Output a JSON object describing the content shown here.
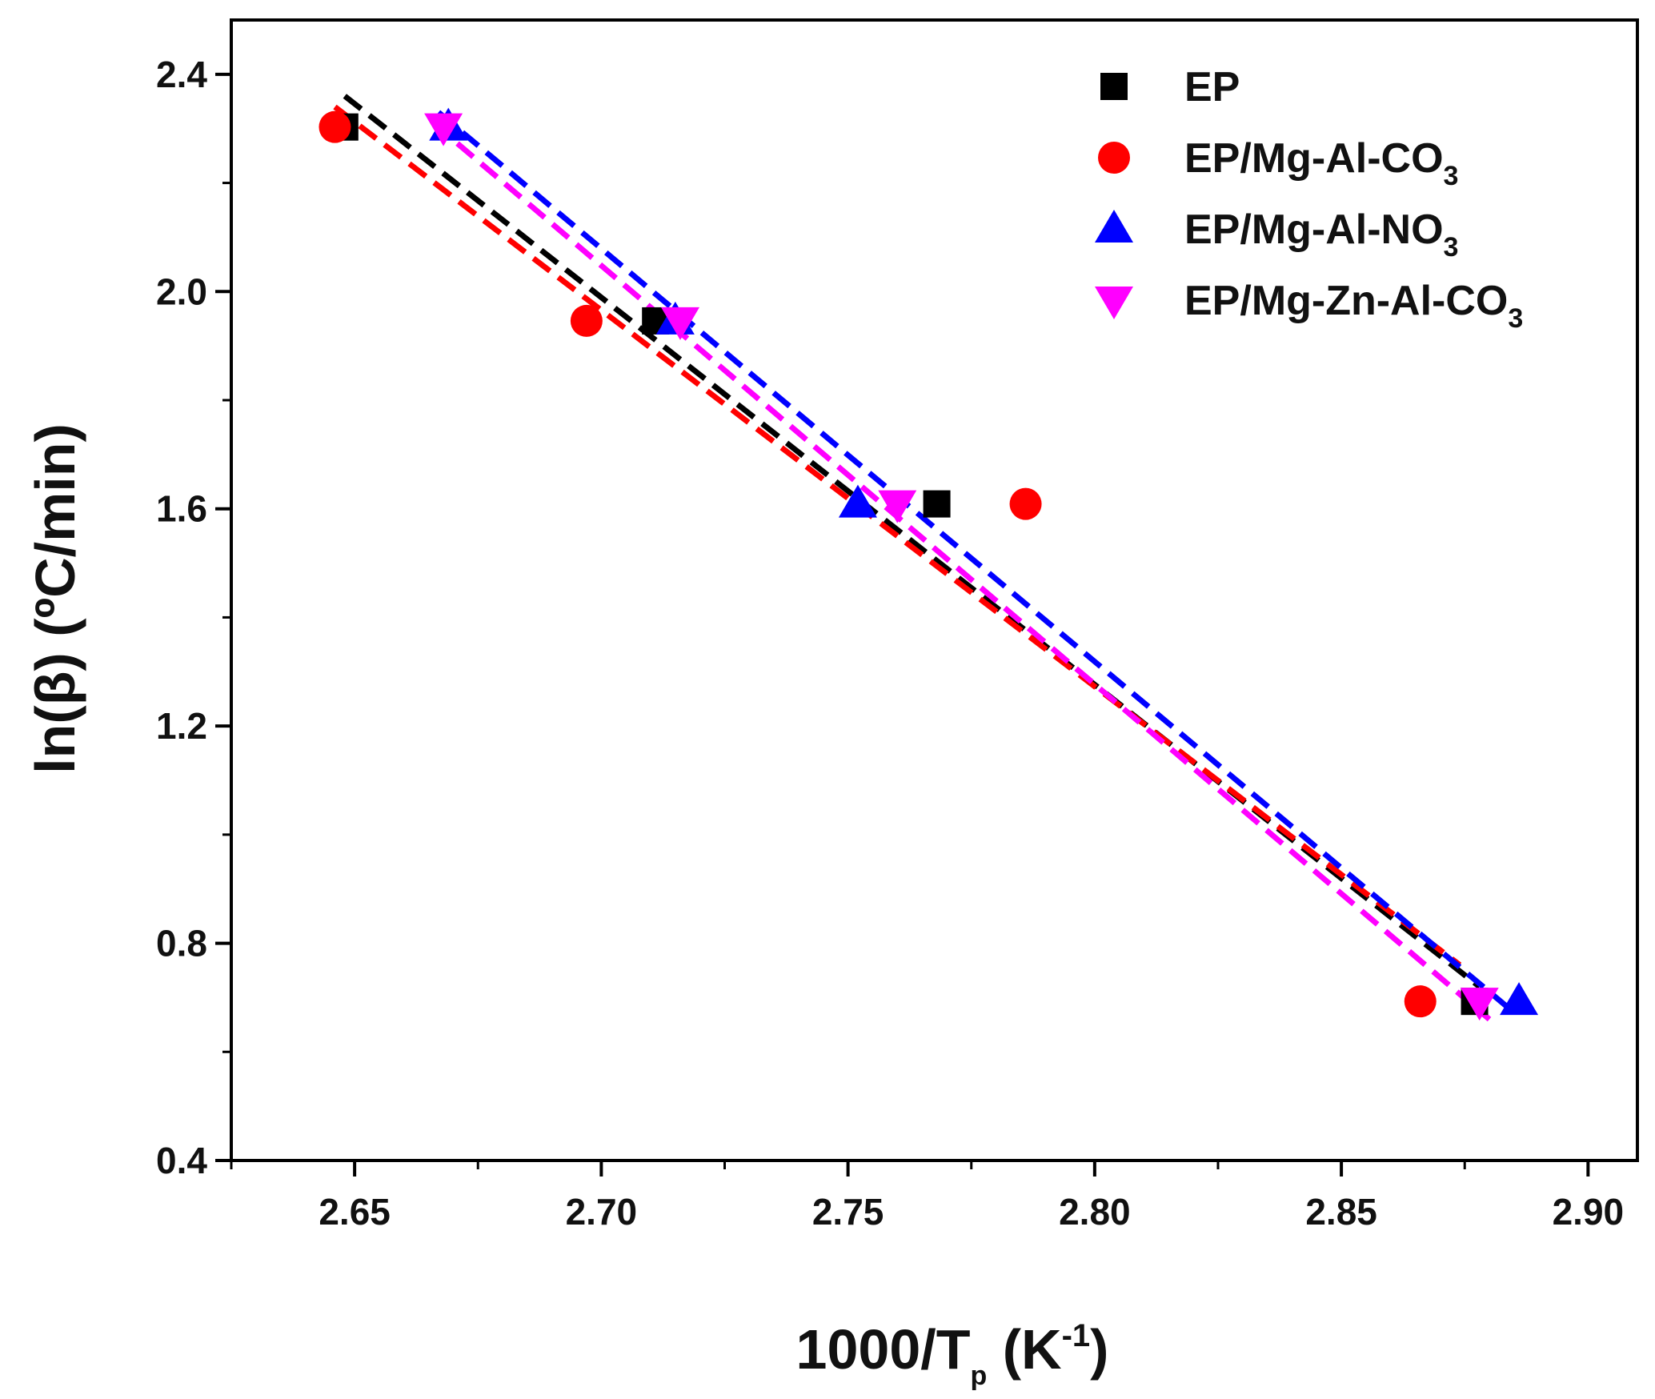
{
  "chart_data": {
    "type": "scatter",
    "title": "",
    "xlabel": {
      "main": "1000/T",
      "sub": "p",
      "unit_open": " (K",
      "sup": "-1",
      "unit_close": ")"
    },
    "ylabel": "ln(β) (ºC/min)",
    "xlim": [
      2.625,
      2.91
    ],
    "ylim": [
      0.4,
      2.5
    ],
    "x_ticks": [
      2.65,
      2.7,
      2.75,
      2.8,
      2.85,
      2.9
    ],
    "x_tick_labels": [
      "2.65",
      "2.70",
      "2.75",
      "2.80",
      "2.85",
      "2.90"
    ],
    "y_ticks": [
      0.4,
      0.8,
      1.2,
      1.6,
      2.0,
      2.4
    ],
    "y_tick_labels": [
      "0.4",
      "0.8",
      "1.2",
      "1.6",
      "2.0",
      "2.4"
    ],
    "legend_position": "top-right",
    "series": [
      {
        "name": "EP",
        "legend": {
          "main": "EP",
          "sub": ""
        },
        "color": "#000000",
        "marker": "square",
        "x": [
          2.648,
          2.711,
          2.768,
          2.877
        ],
        "y": [
          2.303,
          1.946,
          1.609,
          0.693
        ],
        "fit": {
          "x": [
            2.648,
            2.878
          ],
          "y": [
            2.36,
            0.72
          ]
        }
      },
      {
        "name": "EP/Mg-Al-CO3",
        "legend": {
          "main": "EP/Mg-Al-CO",
          "sub": "3"
        },
        "color": "#ff0000",
        "marker": "circle",
        "x": [
          2.646,
          2.697,
          2.786,
          2.866
        ],
        "y": [
          2.303,
          1.946,
          1.609,
          0.693
        ],
        "fit": {
          "x": [
            2.646,
            2.874
          ],
          "y": [
            2.34,
            0.76
          ]
        }
      },
      {
        "name": "EP/Mg-Al-NO3",
        "legend": {
          "main": "EP/Mg-Al-NO",
          "sub": "3"
        },
        "color": "#0000ff",
        "marker": "triangle-up",
        "x": [
          2.669,
          2.715,
          2.752,
          2.886
        ],
        "y": [
          2.303,
          1.946,
          1.609,
          0.693
        ],
        "fit": {
          "x": [
            2.667,
            2.884
          ],
          "y": [
            2.33,
            0.68
          ]
        }
      },
      {
        "name": "EP/Mg-Zn-Al-CO3",
        "legend": {
          "main": "EP/Mg-Zn-Al-CO",
          "sub": "3"
        },
        "color": "#ff00ff",
        "marker": "triangle-down",
        "x": [
          2.668,
          2.716,
          2.76,
          2.878
        ],
        "y": [
          2.303,
          1.946,
          1.609,
          0.693
        ],
        "fit": {
          "x": [
            2.666,
            2.88
          ],
          "y": [
            2.31,
            0.66
          ]
        }
      }
    ]
  }
}
